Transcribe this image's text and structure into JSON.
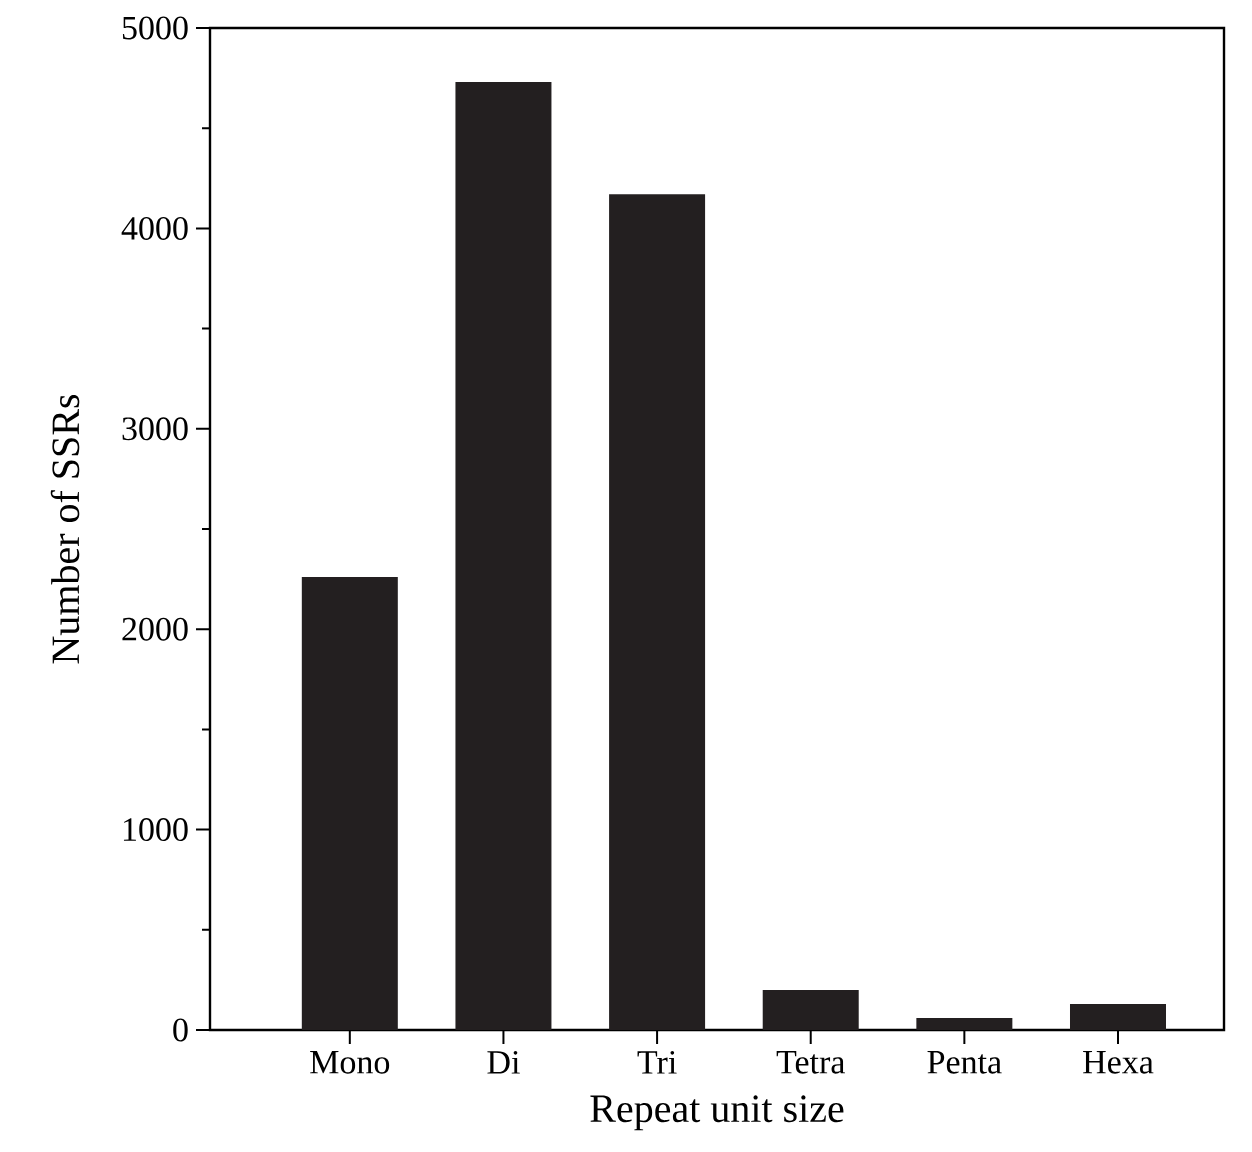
{
  "chart_data": {
    "type": "bar",
    "xlabel": "Repeat unit size",
    "ylabel": "Number of SSRs",
    "categories": [
      "Mono",
      "Di",
      "Tri",
      "Tetra",
      "Penta",
      "Hexa"
    ],
    "values": [
      2260,
      4730,
      4170,
      200,
      60,
      130
    ],
    "color": "#231f20",
    "ylim": [
      0,
      5000
    ],
    "yticks": [
      0,
      {
        "value": 500,
        "label": null
      },
      1000,
      {
        "value": 1500,
        "label": null
      },
      2000,
      {
        "value": 2500,
        "label": null
      },
      3000,
      {
        "value": 3500,
        "label": null
      },
      4000,
      {
        "value": 4500,
        "label": null
      },
      5000
    ],
    "grid": false
  }
}
